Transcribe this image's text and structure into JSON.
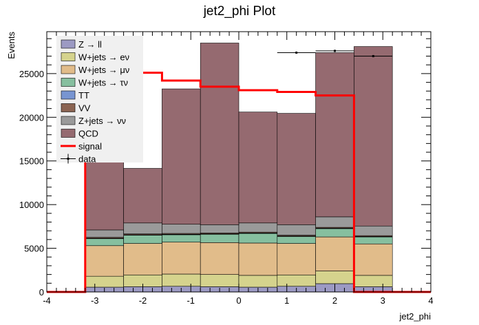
{
  "chart_data": {
    "type": "bar",
    "stacked": true,
    "title": "jet2_phi Plot",
    "xlabel": "jet2_phi",
    "ylabel": "Events",
    "xlim": [
      -4,
      4
    ],
    "ylim": [
      0,
      29800
    ],
    "xticks": [
      "-4",
      "-3",
      "-2",
      "-1",
      "0",
      "1",
      "2",
      "3",
      "4"
    ],
    "yticks": [
      "0",
      "5000",
      "10000",
      "15000",
      "20000",
      "25000"
    ],
    "bin_edges": [
      -3.2,
      -2.4,
      -1.6,
      -0.8,
      0.0,
      0.8,
      1.6,
      2.4,
      3.2
    ],
    "series": [
      {
        "name": "Z → ll",
        "color": "#9c9ac3",
        "values": [
          550,
          600,
          650,
          600,
          550,
          650,
          950,
          600
        ]
      },
      {
        "name": "W+jets → eν",
        "color": "#d5d38d",
        "values": [
          1250,
          1350,
          1400,
          1400,
          1350,
          1300,
          1450,
          1300
        ]
      },
      {
        "name": "W+jets → μν",
        "color": "#e1bc8a",
        "values": [
          3500,
          3600,
          3650,
          3650,
          3700,
          3600,
          3900,
          3600
        ]
      },
      {
        "name": "W+jets → τν",
        "color": "#86bf9f",
        "values": [
          800,
          950,
          850,
          950,
          1100,
          800,
          950,
          800
        ]
      },
      {
        "name": "TT",
        "color": "#7895d1",
        "values": [
          50,
          50,
          50,
          50,
          50,
          50,
          50,
          50
        ]
      },
      {
        "name": "VV",
        "color": "#8b6452",
        "values": [
          100,
          100,
          100,
          100,
          100,
          100,
          100,
          100
        ]
      },
      {
        "name": "Z+jets → νν",
        "color": "#9a9a9a",
        "values": [
          850,
          1250,
          1050,
          950,
          1050,
          1200,
          1200,
          1100
        ]
      },
      {
        "name": "QCD",
        "color": "#956a70",
        "values": [
          11400,
          6250,
          15500,
          20800,
          12700,
          12750,
          18800,
          20550
        ]
      }
    ],
    "signal": {
      "name": "signal",
      "color": "#ff0000",
      "values": [
        24100,
        25100,
        24200,
        23500,
        23100,
        22900,
        22500,
        0
      ]
    },
    "data": {
      "name": "data",
      "color": "#000000",
      "x": [
        1.2,
        2.0,
        2.8
      ],
      "y": [
        27400,
        27600,
        27000
      ]
    },
    "legend": {
      "position": "top-left"
    }
  }
}
